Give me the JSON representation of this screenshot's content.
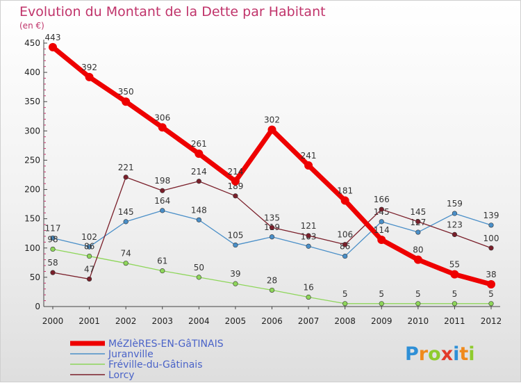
{
  "chart_data": {
    "type": "line",
    "title": "Evolution du Montant de la Dette par Habitant",
    "unit_label": "(en €)",
    "x": [
      "2000",
      "2001",
      "2002",
      "2003",
      "2004",
      "2005",
      "2006",
      "2007",
      "2008",
      "2009",
      "2010",
      "2011",
      "2012"
    ],
    "ylim": [
      0,
      450
    ],
    "yticks": [
      0,
      50,
      100,
      150,
      200,
      250,
      300,
      350,
      400,
      450
    ],
    "grid": false,
    "legend_position": "bottom-left",
    "series": [
      {
        "name": "MéZIèRES-EN-GâTINAIS",
        "color": "#ee0000",
        "values": [
          443,
          392,
          350,
          306,
          261,
          214,
          302,
          241,
          181,
          114,
          80,
          55,
          38
        ]
      },
      {
        "name": "Juranville",
        "color": "#4a8fc8",
        "values": [
          117,
          102,
          145,
          164,
          148,
          105,
          119,
          103,
          86,
          145,
          127,
          159,
          139
        ]
      },
      {
        "name": "Fréville-du-Gâtinais",
        "color": "#8ed65a",
        "values": [
          98,
          86,
          74,
          61,
          50,
          39,
          28,
          16,
          5,
          5,
          5,
          5,
          5
        ]
      },
      {
        "name": "Lorcy",
        "color": "#7a1f2a",
        "values": [
          58,
          47,
          221,
          198,
          214,
          189,
          135,
          121,
          106,
          166,
          145,
          123,
          100
        ]
      }
    ]
  },
  "logo": {
    "letters": [
      "P",
      "r",
      "o",
      "x",
      "i",
      "t",
      "i"
    ],
    "colors": [
      "#2e8fd6",
      "#f08a1c",
      "#8fcb2e",
      "#e23a2a",
      "#2e8fd6",
      "#f08a1c",
      "#8fcb2e"
    ]
  }
}
